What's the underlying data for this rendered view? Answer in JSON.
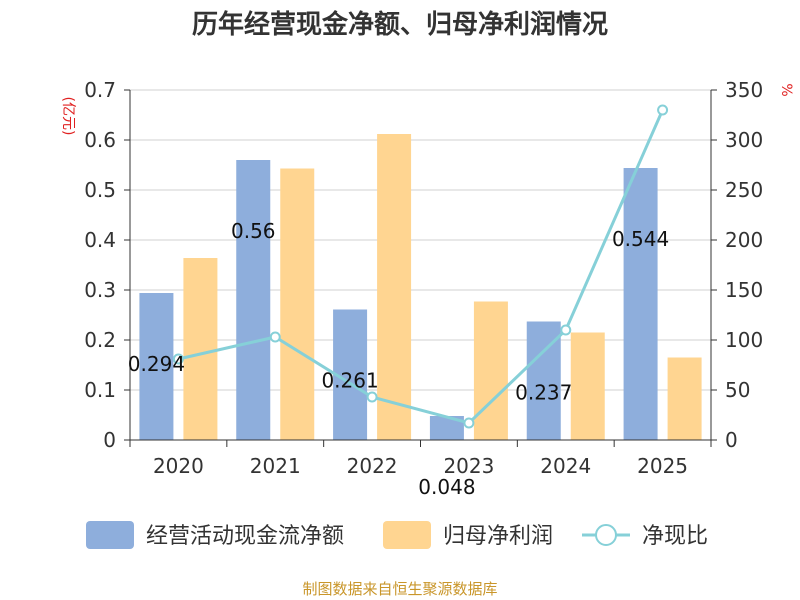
{
  "chart_data": {
    "type": "bar",
    "title": "历年经营现金净额、归母净利润情况",
    "categories": [
      "2020",
      "2021",
      "2022",
      "2023",
      "2024",
      "2025"
    ],
    "left_axis": {
      "label": "(亿元)",
      "ylim": [
        0,
        0.7
      ],
      "ticks": [
        "0",
        "0.1",
        "0.2",
        "0.3",
        "0.4",
        "0.5",
        "0.6",
        "0.7"
      ]
    },
    "right_axis": {
      "label": "%",
      "ylim": [
        0,
        350
      ],
      "ticks": [
        "0",
        "50",
        "100",
        "150",
        "200",
        "250",
        "300",
        "350"
      ]
    },
    "series": [
      {
        "name": "经营活动现金流净额",
        "type": "bar",
        "axis": "left",
        "color": "#8eaedc",
        "values": [
          0.294,
          0.56,
          0.261,
          0.048,
          0.237,
          0.544
        ],
        "labels": [
          "0.294",
          "0.56",
          "0.261",
          "0.048",
          "0.237",
          "0.544"
        ]
      },
      {
        "name": "归母净利润",
        "type": "bar",
        "axis": "left",
        "color": "#ffd591",
        "values": [
          0.364,
          0.543,
          0.612,
          0.277,
          0.215,
          0.165
        ]
      },
      {
        "name": "净现比",
        "type": "line",
        "axis": "right",
        "color": "#86d0d8",
        "values": [
          81,
          103,
          43,
          17,
          110,
          330
        ]
      }
    ],
    "source": "制图数据来自恒生聚源数据库"
  }
}
